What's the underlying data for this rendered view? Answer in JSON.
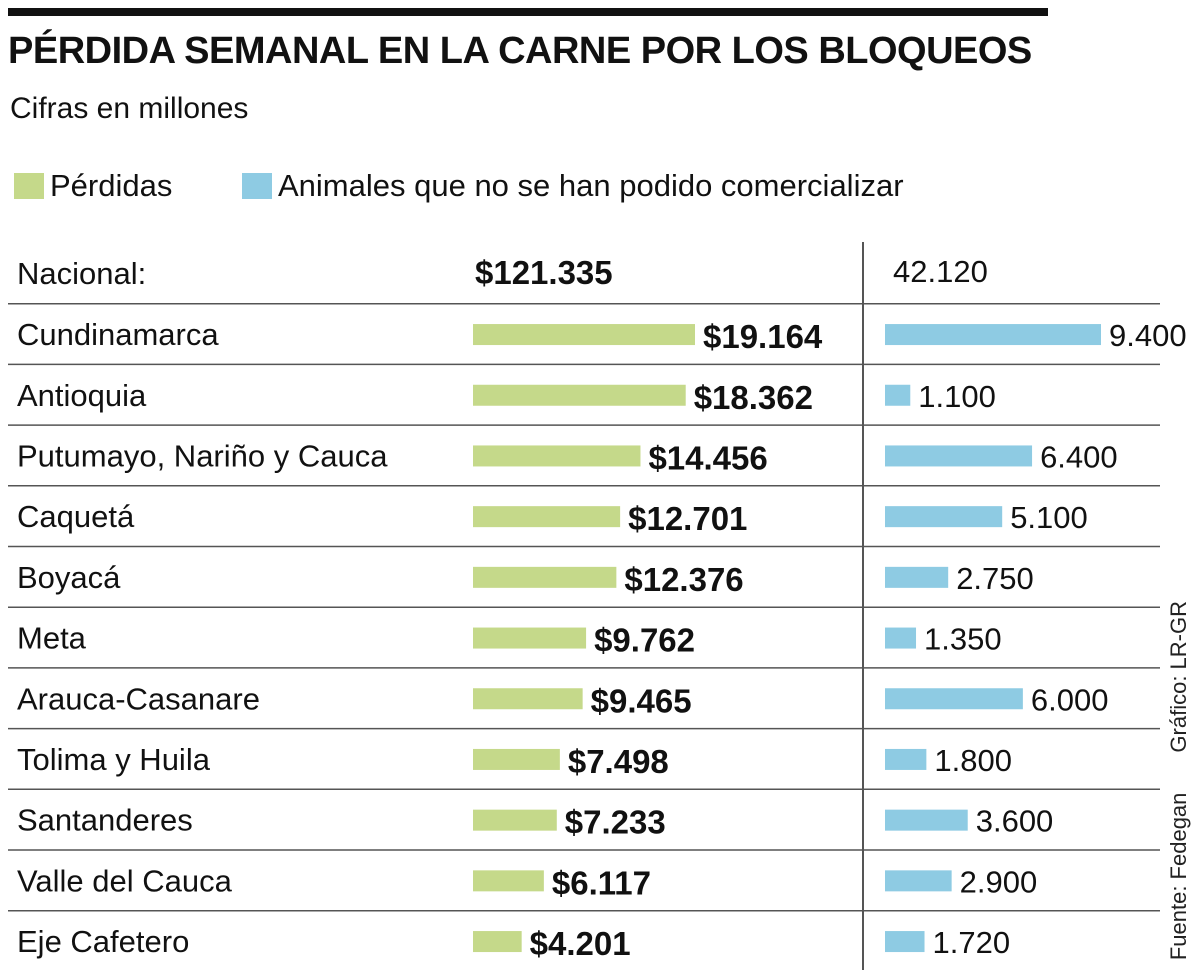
{
  "title": "PÉRDIDA SEMANAL EN LA CARNE POR LOS BLOQUEOS",
  "subtitle": "Cifras en millones",
  "legend": [
    {
      "label": "Pérdidas",
      "color": "#c5d98a"
    },
    {
      "label": "Animales que no se han podido comercializar",
      "color": "#8ecbe3"
    }
  ],
  "side_note": {
    "source": "Fuente: Fedegan",
    "credit": "Gráfico: LR-GR"
  },
  "chart_data": {
    "type": "bar",
    "national": {
      "label": "Nacional:",
      "loss": "$121.335",
      "animals": "42.120"
    },
    "categories": [
      "Cundinamarca",
      "Antioquia",
      "Putumayo, Nariño y Cauca",
      "Caquetá",
      "Boyacá",
      "Meta",
      "Arauca-Casanare",
      "Tolima y Huila",
      "Santanderes",
      "Valle del Cauca",
      "Eje Cafetero"
    ],
    "series": [
      {
        "name": "Pérdidas",
        "color": "#c5d98a",
        "values": [
          19164,
          18362,
          14456,
          12701,
          12376,
          9762,
          9465,
          7498,
          7233,
          6117,
          4201
        ],
        "labels": [
          "$19.164",
          "$18.362",
          "$14.456",
          "$12.701",
          "$12.376",
          "$9.762",
          "$9.465",
          "$7.498",
          "$7.233",
          "$6.117",
          "$4.201"
        ]
      },
      {
        "name": "Animales que no se han podido comercializar",
        "color": "#8ecbe3",
        "values": [
          9400,
          1100,
          6400,
          5100,
          2750,
          1350,
          6000,
          1800,
          3600,
          2900,
          1720
        ],
        "labels": [
          "9.400",
          "1.100",
          "6.400",
          "5.100",
          "2.750",
          "1.350",
          "6.000",
          "1.800",
          "3.600",
          "2.900",
          "1.720"
        ]
      }
    ]
  }
}
